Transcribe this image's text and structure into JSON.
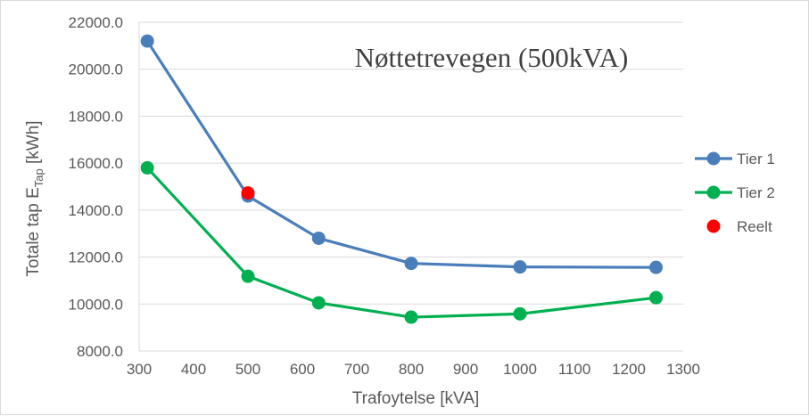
{
  "chart_data": {
    "type": "line",
    "title": "Nøttetrevegen (500kVA)",
    "xlabel": "Trafoytelse [kVA]",
    "ylabel": {
      "main": "Totale tap E",
      "sub": "Tap",
      "unit": " [kWh]"
    },
    "xlim": [
      300,
      1300
    ],
    "xticks": [
      "300",
      "400",
      "500",
      "600",
      "700",
      "800",
      "900",
      "1000",
      "1100",
      "1200",
      "1300"
    ],
    "ylim": [
      8000,
      22000
    ],
    "yticks": [
      "8000.0",
      "10000.0",
      "12000.0",
      "14000.0",
      "16000.0",
      "18000.0",
      "20000.0",
      "22000.0"
    ],
    "grid": "horizontal",
    "legend_position": "right",
    "series": [
      {
        "name": "Tier 1",
        "color": "#4a7ebb",
        "marker": "circle",
        "line": true,
        "x": [
          315,
          500,
          630,
          800,
          1000,
          1250
        ],
        "y": [
          21200,
          14600,
          12800,
          11730,
          11580,
          11560
        ]
      },
      {
        "name": "Tier 2",
        "color": "#00b050",
        "marker": "circle",
        "line": true,
        "x": [
          315,
          500,
          630,
          800,
          1000,
          1250
        ],
        "y": [
          15800,
          11180,
          10050,
          9440,
          9580,
          10270
        ]
      },
      {
        "name": "Reelt",
        "color": "#ff0000",
        "marker": "circle",
        "line": false,
        "x": [
          500
        ],
        "y": [
          14730
        ]
      }
    ]
  }
}
